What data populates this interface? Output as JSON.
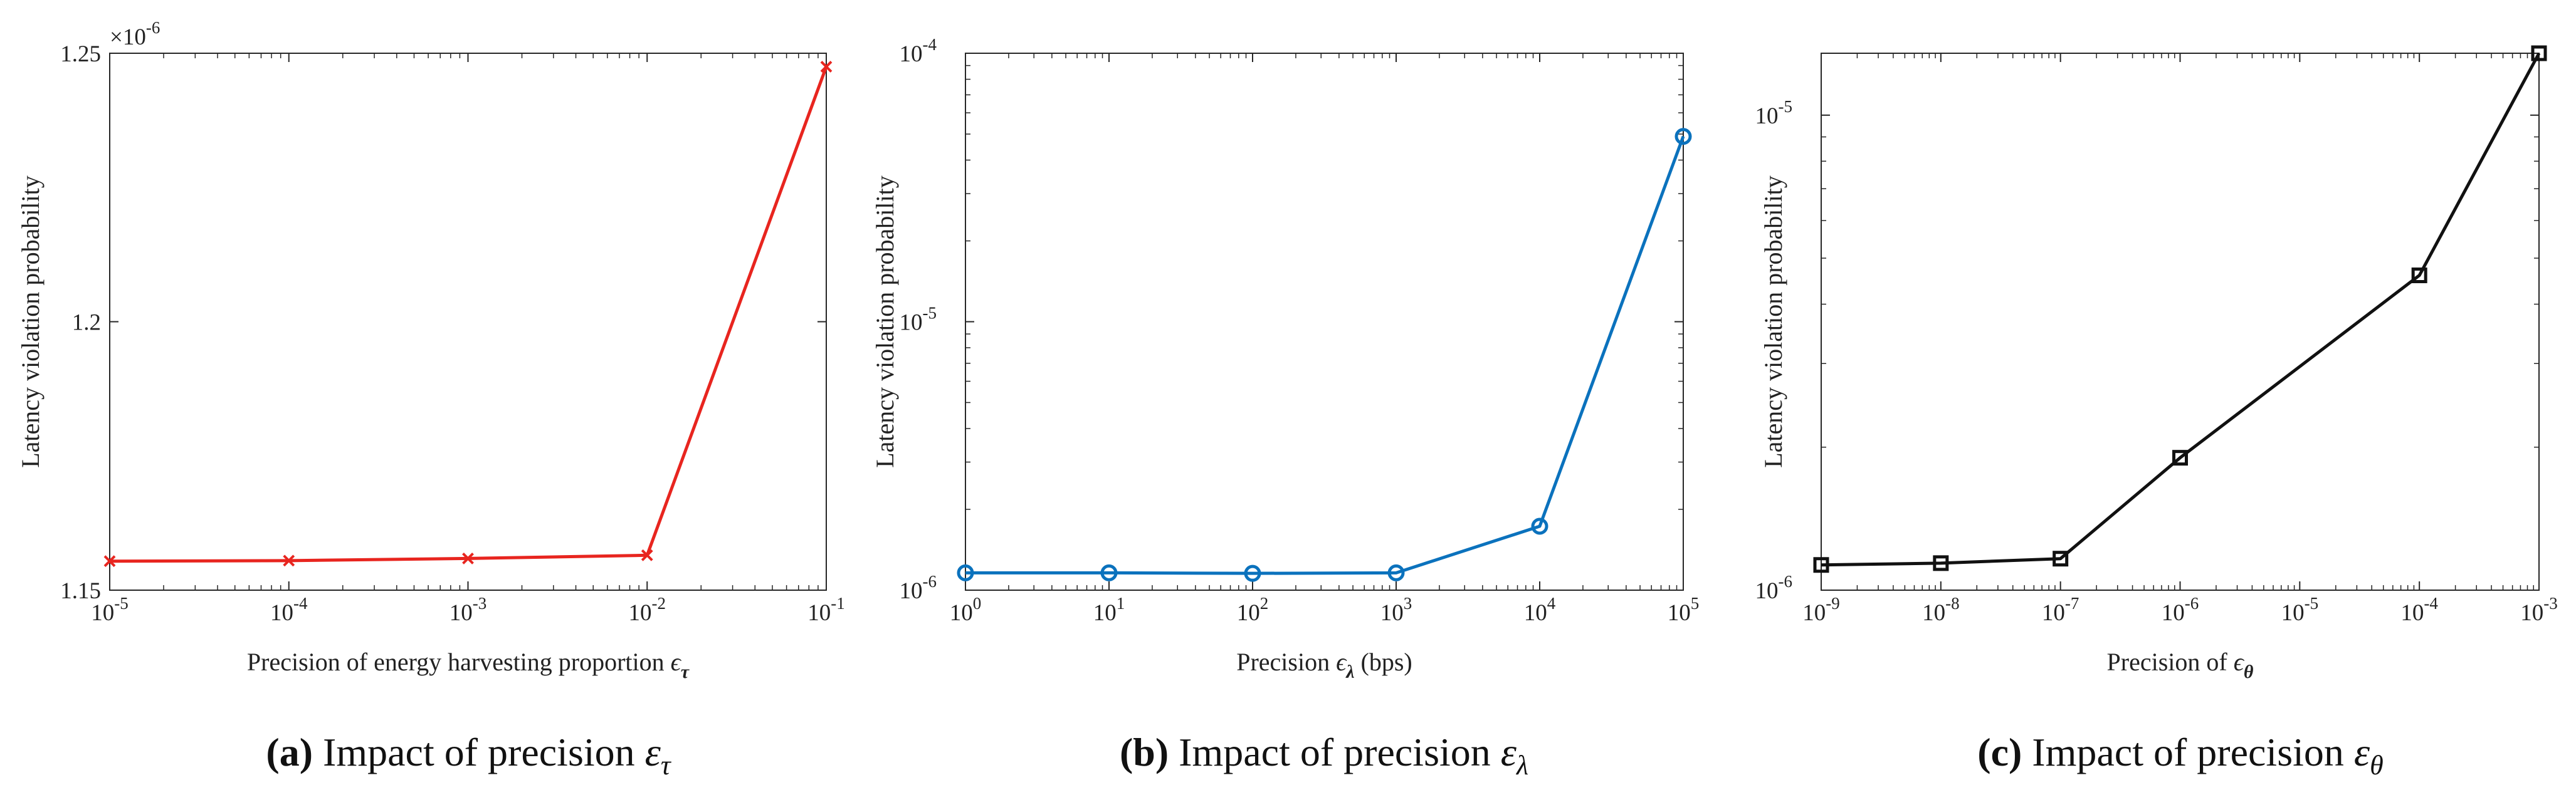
{
  "chart_data": [
    {
      "type": "line",
      "caption": {
        "prefix": "(",
        "letter": "a",
        "suffix": ")",
        "text": "Impact of precision ",
        "symbol": "ε",
        "sub": "τ"
      },
      "xlabel": {
        "text": "Precision of energy harvesting proportion ",
        "symbol": "ϵ",
        "sub": "τ",
        "after": ""
      },
      "ylabel": "Latency violation probability",
      "xscale": "log",
      "yscale": "linear",
      "xlim": [
        1e-05,
        0.1
      ],
      "ylim": [
        1.15e-06,
        1.25e-06
      ],
      "y_multiplier": "×10",
      "y_multiplier_exp": "-6",
      "x_ticks": [
        {
          "v": 1e-05,
          "base": "10",
          "exp": "-5"
        },
        {
          "v": 0.0001,
          "base": "10",
          "exp": "-4"
        },
        {
          "v": 0.001,
          "base": "10",
          "exp": "-3"
        },
        {
          "v": 0.01,
          "base": "10",
          "exp": "-2"
        },
        {
          "v": 0.1,
          "base": "10",
          "exp": "-1"
        }
      ],
      "y_ticks": [
        {
          "v": 1.15e-06,
          "base": "1.15",
          "exp": ""
        },
        {
          "v": 1.2e-06,
          "base": "1.2",
          "exp": ""
        },
        {
          "v": 1.25e-06,
          "base": "1.25",
          "exp": ""
        }
      ],
      "series": [
        {
          "name": "precision-tau",
          "color": "#e8251f",
          "marker": "x",
          "x": [
            1e-05,
            0.0001,
            0.001,
            0.01,
            0.1
          ],
          "y": [
            1.1554e-06,
            1.1555e-06,
            1.1559e-06,
            1.1565e-06,
            1.2475e-06
          ]
        }
      ]
    },
    {
      "type": "line",
      "caption": {
        "prefix": "(",
        "letter": "b",
        "suffix": ")",
        "text": "Impact of precision ",
        "symbol": "ε",
        "sub": "λ"
      },
      "xlabel": {
        "text": "Precision ",
        "symbol": "ϵ",
        "sub": "λ",
        "after": " (bps)"
      },
      "ylabel": "Latency violation probability",
      "xscale": "log",
      "yscale": "log",
      "xlim": [
        1,
        100000
      ],
      "ylim": [
        1e-06,
        0.0001
      ],
      "x_ticks": [
        {
          "v": 1,
          "base": "10",
          "exp": "0"
        },
        {
          "v": 10,
          "base": "10",
          "exp": "1"
        },
        {
          "v": 100,
          "base": "10",
          "exp": "2"
        },
        {
          "v": 1000,
          "base": "10",
          "exp": "3"
        },
        {
          "v": 10000,
          "base": "10",
          "exp": "4"
        },
        {
          "v": 100000,
          "base": "10",
          "exp": "5"
        }
      ],
      "y_ticks": [
        {
          "v": 1e-06,
          "base": "10",
          "exp": "-6"
        },
        {
          "v": 1e-05,
          "base": "10",
          "exp": "-5"
        },
        {
          "v": 0.0001,
          "base": "10",
          "exp": "-4"
        }
      ],
      "series": [
        {
          "name": "precision-lambda",
          "color": "#0b72bd",
          "marker": "o",
          "x": [
            1,
            10,
            100,
            1000,
            10000,
            100000
          ],
          "y": [
            1.16e-06,
            1.16e-06,
            1.155e-06,
            1.16e-06,
            1.73e-06,
            4.9e-05
          ]
        }
      ]
    },
    {
      "type": "line",
      "caption": {
        "prefix": "(",
        "letter": "c",
        "suffix": ")",
        "text": "Impact of precision ",
        "symbol": "ε",
        "sub": "θ"
      },
      "xlabel": {
        "text": "Precision of ",
        "symbol": "ϵ",
        "sub": "θ",
        "after": ""
      },
      "ylabel": "Latency violation probability",
      "xscale": "log",
      "yscale": "log",
      "xlim": [
        1e-09,
        0.001
      ],
      "ylim": [
        1e-06,
        1.35e-05
      ],
      "x_ticks": [
        {
          "v": 1e-09,
          "base": "10",
          "exp": "-9"
        },
        {
          "v": 1e-08,
          "base": "10",
          "exp": "-8"
        },
        {
          "v": 1e-07,
          "base": "10",
          "exp": "-7"
        },
        {
          "v": 1e-06,
          "base": "10",
          "exp": "-6"
        },
        {
          "v": 1e-05,
          "base": "10",
          "exp": "-5"
        },
        {
          "v": 0.0001,
          "base": "10",
          "exp": "-4"
        },
        {
          "v": 0.001,
          "base": "10",
          "exp": "-3"
        }
      ],
      "y_ticks": [
        {
          "v": 1e-06,
          "base": "10",
          "exp": "-6"
        },
        {
          "v": 1e-05,
          "base": "10",
          "exp": "-5"
        }
      ],
      "series": [
        {
          "name": "precision-theta",
          "color": "#111111",
          "marker": "s",
          "x": [
            1e-09,
            1e-08,
            1e-07,
            1e-06,
            0.0001,
            0.001
          ],
          "y": [
            1.13e-06,
            1.14e-06,
            1.165e-06,
            1.9e-06,
            4.6e-06,
            1.35e-05
          ]
        }
      ]
    }
  ]
}
